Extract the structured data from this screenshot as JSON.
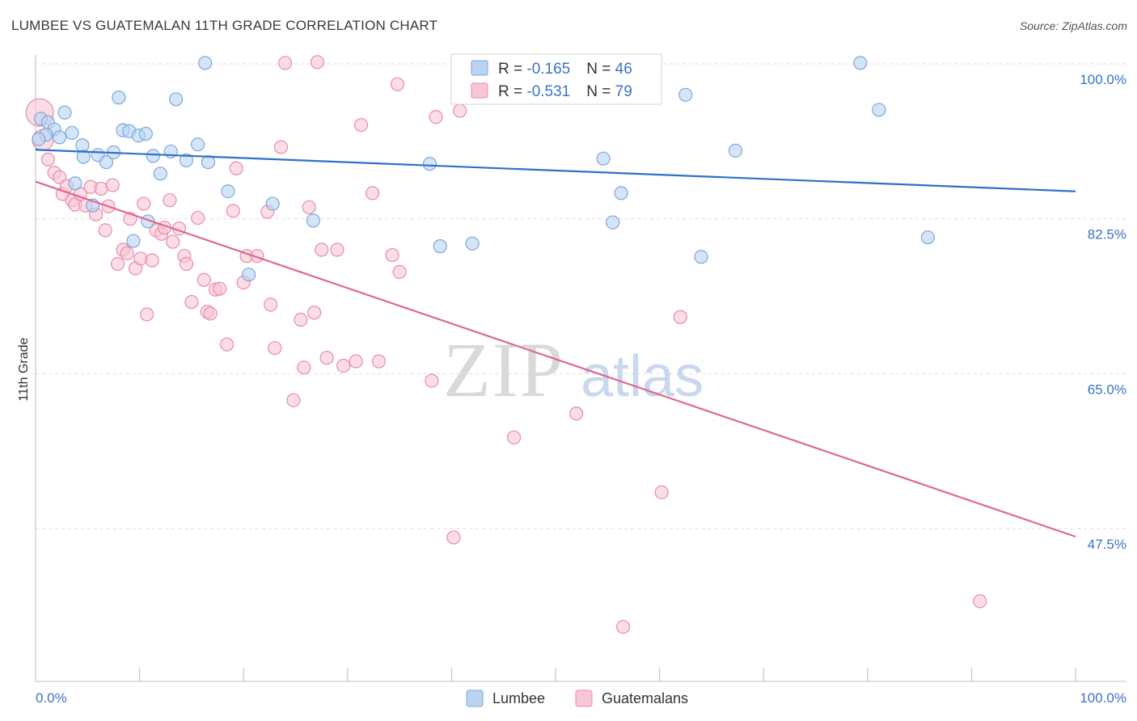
{
  "title": "LUMBEE VS GUATEMALAN 11TH GRADE CORRELATION CHART",
  "source": "Source: ZipAtlas.com",
  "watermark": {
    "zip": "ZIP",
    "atlas": "atlas"
  },
  "colors": {
    "lumbee_fill": "#b9d3f3",
    "lumbee_stroke": "#7ea6dc",
    "lumbee_line": "#2e6fc9",
    "guat_fill": "#f8c6d6",
    "guat_stroke": "#e98bab",
    "guat_line": "#e0668f",
    "grid": "#dcdcdc",
    "axis_label": "#3b73c4"
  },
  "chart_data": {
    "type": "scatter",
    "title": "LUMBEE VS GUATEMALAN 11TH GRADE CORRELATION CHART",
    "xlabel": "",
    "ylabel": "11th Grade",
    "xlim": [
      0,
      100
    ],
    "ylim": [
      33,
      102
    ],
    "x_tick_labels": {
      "left": "0.0%",
      "right": "100.0%"
    },
    "y_ticks": [
      {
        "value": 100.0,
        "label": "100.0%"
      },
      {
        "value": 82.5,
        "label": "82.5%"
      },
      {
        "value": 65.0,
        "label": "65.0%"
      },
      {
        "value": 47.5,
        "label": "47.5%"
      }
    ],
    "grid": true,
    "legend": {
      "placement": "top-center",
      "entries": [
        {
          "r_label": "R = ",
          "r_value": "-0.165",
          "n_label": "N = ",
          "n_value": "46"
        },
        {
          "r_label": "R = ",
          "r_value": "-0.531",
          "n_label": "N = ",
          "n_value": "79"
        }
      ]
    },
    "bottom_legend": [
      "Lumbee",
      "Guatemalans"
    ],
    "series": [
      {
        "name": "Lumbee",
        "trend": {
          "x": [
            0,
            100
          ],
          "y": [
            90.3,
            85.6
          ]
        },
        "points": [
          [
            0.5,
            93.8
          ],
          [
            1.2,
            93.4
          ],
          [
            1.8,
            92.6
          ],
          [
            2.3,
            91.7
          ],
          [
            2.8,
            94.5
          ],
          [
            3.5,
            92.2
          ],
          [
            4.5,
            90.8
          ],
          [
            4.6,
            89.5
          ],
          [
            6.0,
            89.7
          ],
          [
            6.8,
            88.9
          ],
          [
            7.5,
            90.0
          ],
          [
            8.0,
            96.2
          ],
          [
            8.4,
            92.5
          ],
          [
            9.0,
            92.4
          ],
          [
            9.9,
            91.9
          ],
          [
            10.6,
            92.1
          ],
          [
            11.3,
            89.6
          ],
          [
            12.0,
            87.6
          ],
          [
            13.0,
            90.1
          ],
          [
            13.5,
            96.0
          ],
          [
            14.5,
            89.1
          ],
          [
            15.6,
            90.9
          ],
          [
            16.3,
            100.1
          ],
          [
            16.6,
            88.9
          ],
          [
            18.5,
            85.6
          ],
          [
            20.5,
            76.2
          ],
          [
            22.8,
            84.2
          ],
          [
            26.7,
            82.3
          ],
          [
            37.9,
            88.7
          ],
          [
            38.9,
            79.4
          ],
          [
            42.0,
            79.7
          ],
          [
            54.6,
            89.3
          ],
          [
            55.5,
            82.1
          ],
          [
            56.3,
            85.4
          ],
          [
            62.5,
            96.5
          ],
          [
            64.0,
            78.2
          ],
          [
            67.3,
            90.2
          ],
          [
            79.3,
            100.1
          ],
          [
            81.1,
            94.8
          ],
          [
            85.8,
            80.4
          ],
          [
            5.5,
            84.0
          ],
          [
            9.4,
            80.0
          ],
          [
            10.8,
            82.2
          ],
          [
            1.0,
            92.0
          ],
          [
            3.8,
            86.5
          ],
          [
            0.3,
            91.5
          ]
        ]
      },
      {
        "name": "Guatemalans",
        "trend": {
          "x": [
            0,
            100
          ],
          "y": [
            86.7,
            46.6
          ]
        },
        "points": [
          [
            0.4,
            94.5
          ],
          [
            0.7,
            91.4
          ],
          [
            1.2,
            89.2
          ],
          [
            1.8,
            87.7
          ],
          [
            2.3,
            87.2
          ],
          [
            2.6,
            85.3
          ],
          [
            3.0,
            86.2
          ],
          [
            3.5,
            84.6
          ],
          [
            3.8,
            84.1
          ],
          [
            4.3,
            85.3
          ],
          [
            4.8,
            84.0
          ],
          [
            5.3,
            86.1
          ],
          [
            5.8,
            83.0
          ],
          [
            6.3,
            85.9
          ],
          [
            6.7,
            81.2
          ],
          [
            7.0,
            83.9
          ],
          [
            7.4,
            86.3
          ],
          [
            7.9,
            77.4
          ],
          [
            8.4,
            79.0
          ],
          [
            8.8,
            78.6
          ],
          [
            9.1,
            82.5
          ],
          [
            9.6,
            76.9
          ],
          [
            10.1,
            78.0
          ],
          [
            10.4,
            84.2
          ],
          [
            10.7,
            71.7
          ],
          [
            11.2,
            77.8
          ],
          [
            11.6,
            81.2
          ],
          [
            12.1,
            80.8
          ],
          [
            12.4,
            81.5
          ],
          [
            12.9,
            84.6
          ],
          [
            13.2,
            79.9
          ],
          [
            13.8,
            81.4
          ],
          [
            14.3,
            78.3
          ],
          [
            14.5,
            77.4
          ],
          [
            15.0,
            73.1
          ],
          [
            15.6,
            82.6
          ],
          [
            16.2,
            75.6
          ],
          [
            16.5,
            72.0
          ],
          [
            16.8,
            71.8
          ],
          [
            17.3,
            74.5
          ],
          [
            17.7,
            74.6
          ],
          [
            18.4,
            68.3
          ],
          [
            19.0,
            83.4
          ],
          [
            19.3,
            88.2
          ],
          [
            20.0,
            75.3
          ],
          [
            20.3,
            78.3
          ],
          [
            21.3,
            78.3
          ],
          [
            22.3,
            83.3
          ],
          [
            22.6,
            72.8
          ],
          [
            23.0,
            67.9
          ],
          [
            23.6,
            90.6
          ],
          [
            24.0,
            100.1
          ],
          [
            25.5,
            71.1
          ],
          [
            25.8,
            65.7
          ],
          [
            26.3,
            83.8
          ],
          [
            26.8,
            71.9
          ],
          [
            24.8,
            62.0
          ],
          [
            27.1,
            100.2
          ],
          [
            27.5,
            79.0
          ],
          [
            28.0,
            66.8
          ],
          [
            29.0,
            79.0
          ],
          [
            29.6,
            65.9
          ],
          [
            30.8,
            66.4
          ],
          [
            31.3,
            93.1
          ],
          [
            32.4,
            85.4
          ],
          [
            33.0,
            66.4
          ],
          [
            34.3,
            78.4
          ],
          [
            35.0,
            76.5
          ],
          [
            34.8,
            97.7
          ],
          [
            38.1,
            64.2
          ],
          [
            38.5,
            94.0
          ],
          [
            40.2,
            46.5
          ],
          [
            40.8,
            94.7
          ],
          [
            46.0,
            57.8
          ],
          [
            52.0,
            60.5
          ],
          [
            60.2,
            51.6
          ],
          [
            62.0,
            71.4
          ],
          [
            90.8,
            39.3
          ],
          [
            56.5,
            36.4
          ]
        ]
      }
    ]
  }
}
